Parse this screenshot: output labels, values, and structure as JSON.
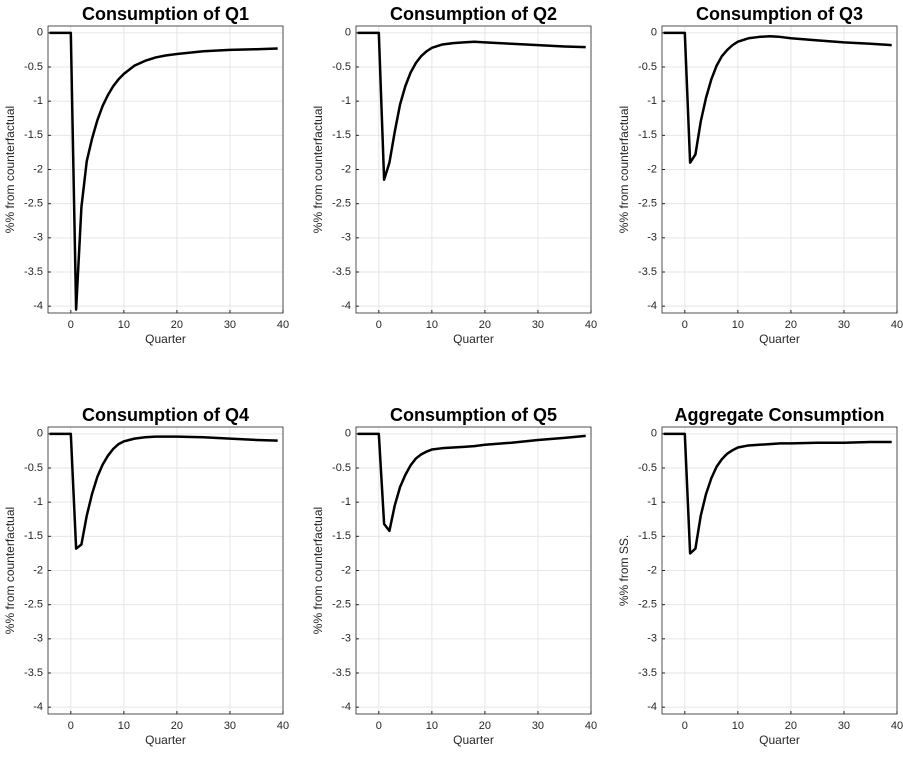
{
  "chart_data": [
    {
      "type": "line",
      "title": "Consumption of Q1",
      "xlabel": "Quarter",
      "ylabel": "%% from counterfactual",
      "color": "#000000",
      "grid": true,
      "x": [
        -4,
        -3,
        -2,
        -1,
        0,
        1,
        2,
        3,
        4,
        5,
        6,
        7,
        8,
        9,
        10,
        12,
        14,
        16,
        18,
        20,
        25,
        30,
        35,
        39
      ],
      "values": [
        0,
        0,
        0,
        0,
        0,
        -4.05,
        -2.55,
        -1.88,
        -1.55,
        -1.28,
        -1.07,
        -0.91,
        -0.78,
        -0.68,
        -0.6,
        -0.48,
        -0.41,
        -0.36,
        -0.33,
        -0.31,
        -0.27,
        -0.25,
        -0.24,
        -0.23
      ],
      "xlim": [
        -4.3,
        40
      ],
      "ylim": [
        -4.1,
        0.1
      ],
      "xticks": [
        0,
        10,
        20,
        30,
        40
      ],
      "yticks": [
        0,
        -0.5,
        -1,
        -1.5,
        -2,
        -2.5,
        -3,
        -3.5,
        -4
      ]
    },
    {
      "type": "line",
      "title": "Consumption of Q2",
      "xlabel": "Quarter",
      "ylabel": "%% from counterfactual",
      "color": "#000000",
      "grid": true,
      "x": [
        -4,
        -3,
        -2,
        -1,
        0,
        1,
        2,
        3,
        4,
        5,
        6,
        7,
        8,
        9,
        10,
        12,
        14,
        16,
        18,
        20,
        25,
        30,
        35,
        39
      ],
      "values": [
        0,
        0,
        0,
        0,
        0,
        -2.15,
        -1.9,
        -1.45,
        -1.05,
        -0.78,
        -0.58,
        -0.44,
        -0.34,
        -0.27,
        -0.22,
        -0.17,
        -0.15,
        -0.14,
        -0.13,
        -0.14,
        -0.16,
        -0.18,
        -0.2,
        -0.21
      ],
      "xlim": [
        -4.3,
        40
      ],
      "ylim": [
        -4.1,
        0.1
      ],
      "xticks": [
        0,
        10,
        20,
        30,
        40
      ],
      "yticks": [
        0,
        -0.5,
        -1,
        -1.5,
        -2,
        -2.5,
        -3,
        -3.5,
        -4
      ]
    },
    {
      "type": "line",
      "title": "Consumption of Q3",
      "xlabel": "Quarter",
      "ylabel": "%% from counterfactual",
      "color": "#000000",
      "grid": true,
      "x": [
        -4,
        -3,
        -2,
        -1,
        0,
        1,
        2,
        3,
        4,
        5,
        6,
        7,
        8,
        9,
        10,
        12,
        14,
        16,
        18,
        20,
        25,
        30,
        35,
        39
      ],
      "values": [
        0,
        0,
        0,
        0,
        0,
        -1.9,
        -1.78,
        -1.3,
        -0.95,
        -0.68,
        -0.48,
        -0.34,
        -0.25,
        -0.18,
        -0.13,
        -0.08,
        -0.06,
        -0.05,
        -0.06,
        -0.08,
        -0.11,
        -0.14,
        -0.16,
        -0.18
      ],
      "xlim": [
        -4.3,
        40
      ],
      "ylim": [
        -4.1,
        0.1
      ],
      "xticks": [
        0,
        10,
        20,
        30,
        40
      ],
      "yticks": [
        0,
        -0.5,
        -1,
        -1.5,
        -2,
        -2.5,
        -3,
        -3.5,
        -4
      ]
    },
    {
      "type": "line",
      "title": "Consumption of Q4",
      "xlabel": "Quarter",
      "ylabel": "%% from counterfactual",
      "color": "#000000",
      "grid": true,
      "x": [
        -4,
        -3,
        -2,
        -1,
        0,
        1,
        2,
        3,
        4,
        5,
        6,
        7,
        8,
        9,
        10,
        12,
        14,
        16,
        18,
        20,
        25,
        30,
        35,
        39
      ],
      "values": [
        0,
        0,
        0,
        0,
        0,
        -1.68,
        -1.62,
        -1.2,
        -0.88,
        -0.63,
        -0.45,
        -0.32,
        -0.22,
        -0.15,
        -0.11,
        -0.07,
        -0.05,
        -0.04,
        -0.04,
        -0.04,
        -0.05,
        -0.07,
        -0.09,
        -0.1
      ],
      "xlim": [
        -4.3,
        40
      ],
      "ylim": [
        -4.1,
        0.1
      ],
      "xticks": [
        0,
        10,
        20,
        30,
        40
      ],
      "yticks": [
        0,
        -0.5,
        -1,
        -1.5,
        -2,
        -2.5,
        -3,
        -3.5,
        -4
      ]
    },
    {
      "type": "line",
      "title": "Consumption of Q5",
      "xlabel": "Quarter",
      "ylabel": "%% from counterfactual",
      "color": "#000000",
      "grid": true,
      "x": [
        -4,
        -3,
        -2,
        -1,
        0,
        1,
        2,
        3,
        4,
        5,
        6,
        7,
        8,
        9,
        10,
        12,
        14,
        16,
        18,
        20,
        25,
        30,
        35,
        39
      ],
      "values": [
        0,
        0,
        0,
        0,
        0,
        -1.32,
        -1.42,
        -1.05,
        -0.78,
        -0.6,
        -0.46,
        -0.36,
        -0.3,
        -0.26,
        -0.23,
        -0.21,
        -0.2,
        -0.19,
        -0.18,
        -0.16,
        -0.13,
        -0.09,
        -0.06,
        -0.03
      ],
      "xlim": [
        -4.3,
        40
      ],
      "ylim": [
        -4.1,
        0.1
      ],
      "xticks": [
        0,
        10,
        20,
        30,
        40
      ],
      "yticks": [
        0,
        -0.5,
        -1,
        -1.5,
        -2,
        -2.5,
        -3,
        -3.5,
        -4
      ]
    },
    {
      "type": "line",
      "title": "Aggregate Consumption",
      "xlabel": "Quarter",
      "ylabel": "%% from SS.",
      "color": "#000000",
      "grid": true,
      "x": [
        -4,
        -3,
        -2,
        -1,
        0,
        1,
        2,
        3,
        4,
        5,
        6,
        7,
        8,
        9,
        10,
        12,
        14,
        16,
        18,
        20,
        25,
        30,
        35,
        39
      ],
      "values": [
        0,
        0,
        0,
        0,
        0,
        -1.75,
        -1.68,
        -1.2,
        -0.88,
        -0.65,
        -0.48,
        -0.37,
        -0.29,
        -0.24,
        -0.2,
        -0.17,
        -0.16,
        -0.15,
        -0.14,
        -0.14,
        -0.13,
        -0.13,
        -0.12,
        -0.12
      ],
      "xlim": [
        -4.3,
        40
      ],
      "ylim": [
        -4.1,
        0.1
      ],
      "xticks": [
        0,
        10,
        20,
        30,
        40
      ],
      "yticks": [
        0,
        -0.5,
        -1,
        -1.5,
        -2,
        -2.5,
        -3,
        -3.5,
        -4
      ]
    }
  ]
}
